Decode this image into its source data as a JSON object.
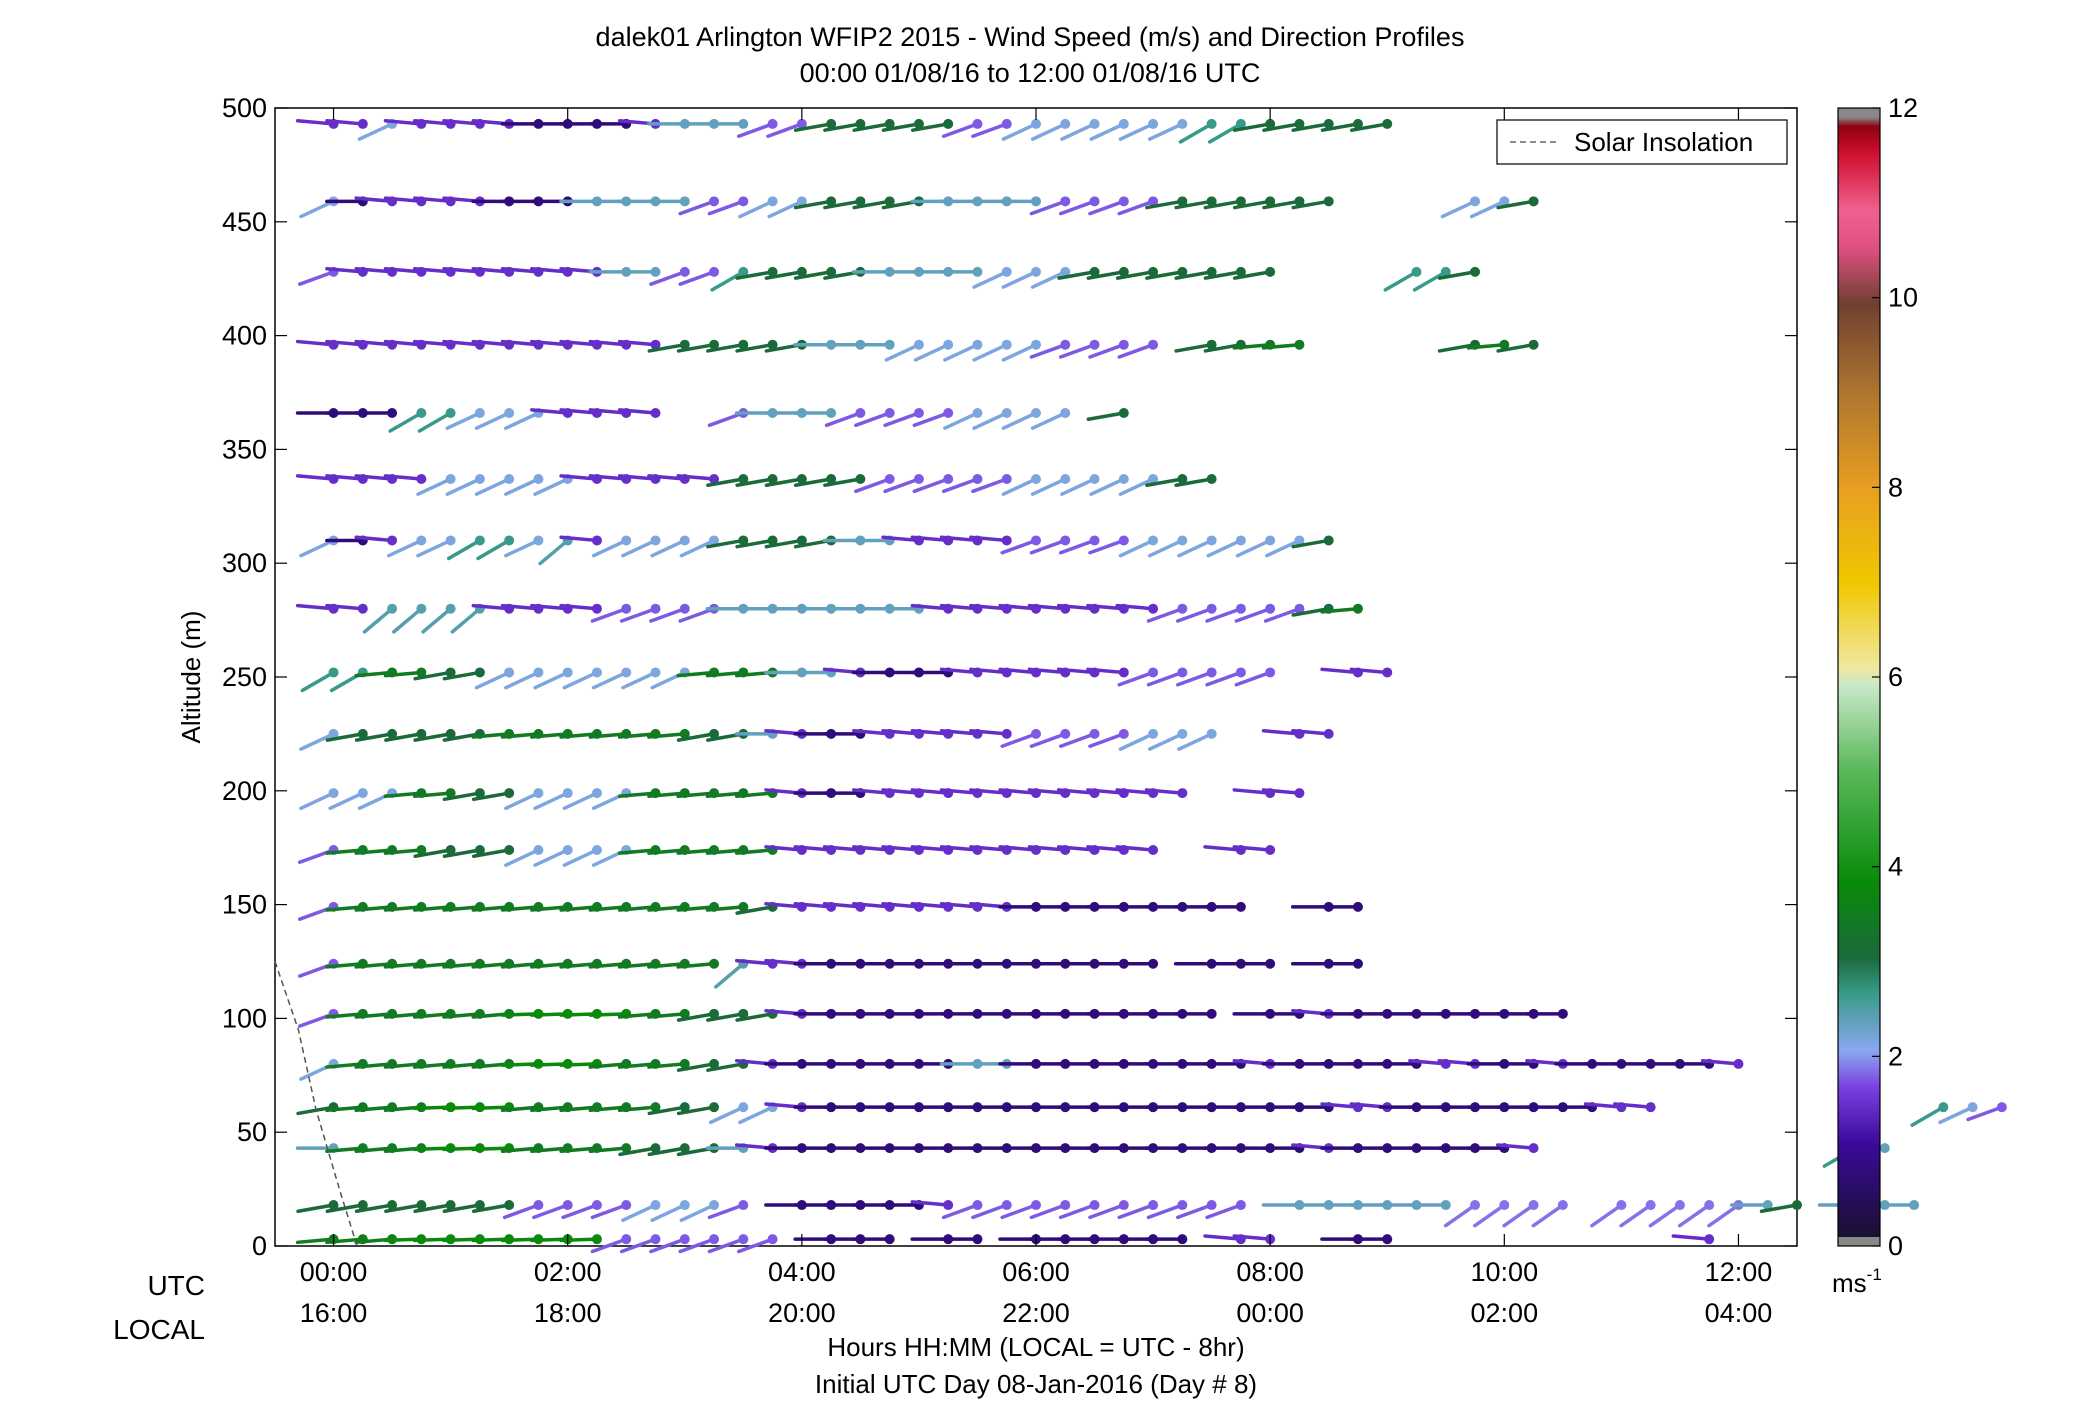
{
  "chart_data": {
    "type": "scatter",
    "title": "dalek01 Arlington WFIP2 2015 - Wind Speed (m/s) and Direction Profiles",
    "subtitle": "00:00 01/08/16 to 12:00 01/08/16  UTC",
    "ylabel": "Altitude (m)",
    "xlabel": "Hours HH:MM  (LOCAL = UTC - 8hr)",
    "xlabel2": "Initial UTC Day 08-Jan-2016 (Day # 8)",
    "row_label_utc": "UTC",
    "row_label_local": "LOCAL",
    "xlim": [
      -0.5,
      12.5
    ],
    "ylim": [
      0,
      500
    ],
    "xticks": [
      0,
      2,
      4,
      6,
      8,
      10,
      12
    ],
    "xtick_labels_utc": [
      "00:00",
      "02:00",
      "04:00",
      "06:00",
      "08:00",
      "10:00",
      "12:00"
    ],
    "xtick_labels_local": [
      "16:00",
      "18:00",
      "20:00",
      "22:00",
      "00:00",
      "02:00",
      "04:00"
    ],
    "yticks": [
      0,
      50,
      100,
      150,
      200,
      250,
      300,
      350,
      400,
      450,
      500
    ],
    "ytick_labels": [
      "0",
      "50",
      "100",
      "150",
      "200",
      "250",
      "300",
      "350",
      "400",
      "450",
      "500"
    ],
    "grid": false,
    "legend": {
      "placement": "top-right",
      "entries": [
        "Solar Insolation"
      ]
    },
    "solar_insolation": {
      "x": [
        -0.5,
        -0.3,
        -0.15,
        0.05,
        0.2
      ],
      "y": [
        125,
        95,
        60,
        25,
        0
      ]
    },
    "colorbar": {
      "label": "ms-1",
      "range": [
        0,
        12
      ],
      "ticks": [
        0,
        2,
        4,
        6,
        8,
        10,
        12
      ],
      "tick_labels": [
        "0",
        "2",
        "4",
        "6",
        "8",
        "10",
        "12"
      ],
      "stops": [
        {
          "v": 0.0,
          "color": "#1a1030"
        },
        {
          "v": 1.0,
          "color": "#3a0a9a"
        },
        {
          "v": 1.6,
          "color": "#7a40e0"
        },
        {
          "v": 2.0,
          "color": "#8aa8f0"
        },
        {
          "v": 2.6,
          "color": "#3a9a8a"
        },
        {
          "v": 3.0,
          "color": "#1a6a3a"
        },
        {
          "v": 3.8,
          "color": "#0a8a0a"
        },
        {
          "v": 5.0,
          "color": "#5ab85a"
        },
        {
          "v": 5.9,
          "color": "#c8e8c8"
        },
        {
          "v": 6.1,
          "color": "#f0e8a0"
        },
        {
          "v": 7.0,
          "color": "#f0c800"
        },
        {
          "v": 8.0,
          "color": "#e8a020"
        },
        {
          "v": 9.0,
          "color": "#b07830"
        },
        {
          "v": 10.0,
          "color": "#704030"
        },
        {
          "v": 10.6,
          "color": "#e05080"
        },
        {
          "v": 11.0,
          "color": "#f06090"
        },
        {
          "v": 11.6,
          "color": "#d01030"
        },
        {
          "v": 11.9,
          "color": "#900010"
        }
      ]
    },
    "time_start": 0,
    "time_step": 0.25,
    "levels": [
      {
        "alt": 3,
        "row": "BBB>>>>>>>IIIIII.CCC.CC.CCCCCC.DD..CC..........D..."
      },
      {
        "alt": 18,
        "row": "GGGGGGGIIIIJJJI.CCCCCDIIIIIIIIII.HHHHHHMMMM.MMMMMHG.HHH."
      },
      {
        "alt": 43,
        "row": "HFFF>>>FFFFGGGHDCCCCCCCCCCCCCCCCCCDCCCCCCD..........KH.."
      },
      {
        "alt": 61,
        "row": "GFFF>>>FFFFFGGJJDCCCCCCCCCCCCCCCCCCDDCCCCCCCDD.........KJI"
      },
      {
        "alt": 80,
        "row": "JFFFFFF>>>FFFGGDCCCCCCHHCCCCCCCCDCCCCCDDCCDCCCCCD"
      },
      {
        "alt": 102,
        "row": "IFFFFFF>>>>FFGGGDCCCCCCCCCCCCCC.CCDCCCCCCCC"
      },
      {
        "alt": 124,
        "row": "IFFFFFFFFFFFFFLDDCCCCCCCCCCCC.CCC.CC"
      },
      {
        "alt": 149,
        "row": "IFFFFFFFFFFFFFFGDDDDDDDDCCCCCCCC..CC"
      },
      {
        "alt": 174,
        "row": "IFFFGGGJJJJFFFFFDDDDDDDDDDDDD..DD"
      },
      {
        "alt": 199,
        "row": "JJJFFGGJJJJFFFFFDCCDDDDDDDDDDD..DD"
      },
      {
        "alt": 225,
        "row": "JGGGGGFFFFFFFGGHDCCDDDDDIIIIJJJ..DD"
      },
      {
        "alt": 252,
        "row": "KKFFGGJJJJJJJFFFHHDCCCDDDDDDIIIII..DD"
      },
      {
        "alt": 280,
        "row": "DDLLLLDDDDIIIIHHHHHHHDDDDDDDDIIIIIGF"
      },
      {
        "alt": 310,
        "row": "JCDJJKKJLDJJJJGGGGHHDDDDIIIIJJJJJJG"
      },
      {
        "alt": 337,
        "row": "DDDDJJJJJDDDDDGGGGGIIIIIJJJJJGG"
      },
      {
        "alt": 366,
        "row": "CCCKKJJJDDDD..IHHHIIIIJJJJ.G"
      },
      {
        "alt": 396,
        "row": "DDDDDDDDDDDDGGGGGHHHJJJJJIIII.GGFF.....GFG"
      },
      {
        "alt": 428,
        "row": "IDDDDDDDDDHHIIKGGGGHHHHJJJGGGGGGG....KKG"
      },
      {
        "alt": 459,
        "row": "JCDDDDCCCHHHHIIJJGGGGHHHHIIIIGGGGGG....JJG"
      },
      {
        "alt": 493,
        "row": "DDJDDDDCCCCDHHHIIGGGGGIIJJJJJJKKGGGGG"
      }
    ],
    "code_scale": {
      "A": [
        0.4,
        260
      ],
      "B": [
        3.5,
        265
      ],
      "C": [
        0.7,
        270
      ],
      "D": [
        1.4,
        275
      ],
      "E": [
        1.8,
        280
      ],
      "F": [
        3.4,
        265
      ],
      "G": [
        3.0,
        260
      ],
      "H": [
        2.3,
        270
      ],
      "I": [
        1.7,
        250
      ],
      "J": [
        2.1,
        245
      ],
      "K": [
        2.6,
        240
      ],
      "L": [
        2.4,
        230
      ],
      "M": [
        1.8,
        235
      ],
      ">": [
        3.8,
        268
      ]
    }
  }
}
